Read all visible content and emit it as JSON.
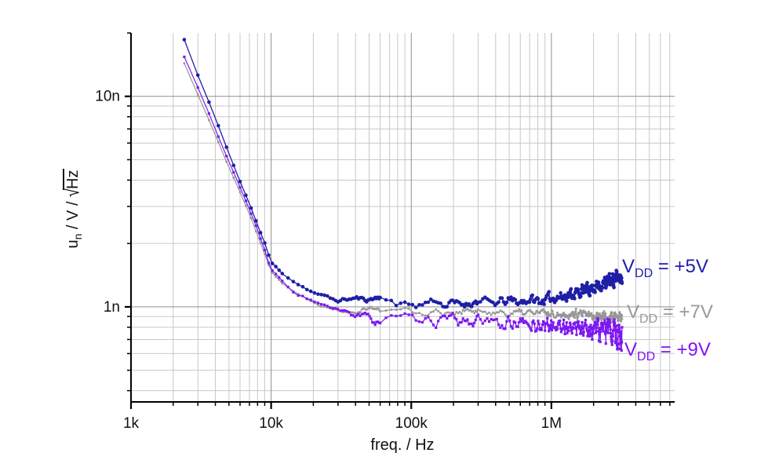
{
  "chart_data": {
    "type": "line",
    "title": "",
    "xlabel": "freq. / Hz",
    "ylabel": "u_n / V / sqrt(Hz)",
    "xscale": "log",
    "yscale": "log",
    "xlim_Hz": [
      1000,
      7580000
    ],
    "ylim_nV_per_rtHz": [
      0.3536,
      20
    ],
    "grid": "full-minor-log-grid",
    "legend_position": "right-of-curve-ends",
    "y_title_parts": {
      "base": "u",
      "sub": "n",
      "mid": " / V / ",
      "radical": "√",
      "arg": "Hz"
    },
    "x_ticks_major": [
      {
        "v": 1000,
        "label": "1k"
      },
      {
        "v": 10000,
        "label": "10k"
      },
      {
        "v": 100000,
        "label": "100k"
      },
      {
        "v": 1000000,
        "label": "1M"
      }
    ],
    "x_ticks_minor": [
      2000,
      3000,
      4000,
      5000,
      6000,
      7000,
      8000,
      9000,
      20000,
      30000,
      40000,
      50000,
      60000,
      70000,
      80000,
      90000,
      200000,
      300000,
      400000,
      500000,
      600000,
      700000,
      800000,
      900000,
      2000000,
      3000000,
      4000000,
      5000000,
      6000000,
      7000000
    ],
    "y_ticks_major": [
      {
        "v": 10,
        "label": "10n"
      },
      {
        "v": 1,
        "label": "1n"
      }
    ],
    "y_ticks_minor": [
      20,
      9,
      8,
      7,
      6,
      5,
      4,
      3,
      2,
      0.9,
      0.8,
      0.7,
      0.6,
      0.5,
      0.4
    ],
    "style": {
      "grid_minor_color": "#c8c8c8",
      "grid_major_color": "#8f8f8f",
      "spine_color": "#000000",
      "tick_color": "#000000",
      "label_color": "#111111",
      "background": "#ffffff"
    },
    "sampling_spans_Hz": [
      [
        2400,
        12000,
        600
      ],
      [
        13200,
        60000,
        1200
      ],
      [
        66000,
        300000,
        6000
      ],
      [
        312000,
        3200000,
        12000
      ]
    ],
    "series": [
      {
        "name": "VDD = +5V",
        "color": "#1e1ea6",
        "marker": "circle",
        "marker_size": 2.3,
        "line_width": 1.3,
        "z": 3,
        "seed": 11,
        "bias": 0.25,
        "trend_nV_per_rtHz": [
          [
            2370,
            19.0
          ],
          [
            3000,
            12.6
          ],
          [
            4000,
            7.9
          ],
          [
            5000,
            5.3
          ],
          [
            6000,
            3.95
          ],
          [
            7000,
            3.1
          ],
          [
            8000,
            2.45
          ],
          [
            9000,
            2.0
          ],
          [
            10000,
            1.62
          ],
          [
            12000,
            1.45
          ],
          [
            15000,
            1.3
          ],
          [
            20000,
            1.17
          ],
          [
            25000,
            1.11
          ],
          [
            30000,
            1.07
          ],
          [
            40000,
            1.1
          ],
          [
            50000,
            1.08
          ],
          [
            60000,
            1.12
          ],
          [
            70000,
            1.06
          ],
          [
            78000,
            1.0
          ],
          [
            85000,
            1.04
          ],
          [
            92000,
            1.07
          ],
          [
            100000,
            1.04
          ],
          [
            110000,
            0.99
          ],
          [
            130000,
            1.06
          ],
          [
            150000,
            1.08
          ],
          [
            170000,
            1.01
          ],
          [
            200000,
            1.04
          ],
          [
            250000,
            1.03
          ],
          [
            300000,
            1.06
          ],
          [
            400000,
            1.04
          ],
          [
            500000,
            1.07
          ],
          [
            600000,
            1.05
          ],
          [
            700000,
            1.08
          ],
          [
            850000,
            1.06
          ],
          [
            1000000,
            1.1
          ],
          [
            1200000,
            1.12
          ],
          [
            1500000,
            1.16
          ],
          [
            1800000,
            1.2
          ],
          [
            2200000,
            1.26
          ],
          [
            2600000,
            1.32
          ],
          [
            3000000,
            1.38
          ],
          [
            3200000,
            1.42
          ]
        ],
        "noise_sigma_log10": [
          [
            2400,
            0.0015
          ],
          [
            20000,
            0.004
          ],
          [
            60000,
            0.008
          ],
          [
            150000,
            0.011
          ],
          [
            400000,
            0.013
          ],
          [
            1000000,
            0.016
          ],
          [
            2000000,
            0.02
          ],
          [
            3200000,
            0.024
          ]
        ]
      },
      {
        "name": "VDD = +7V",
        "color": "#969696",
        "marker": "square",
        "marker_size": 2.6,
        "line_width": 1.2,
        "z": 1,
        "seed": 22,
        "bias": 0,
        "trend_nV_per_rtHz": [
          [
            2350,
            14.8
          ],
          [
            3000,
            10.2
          ],
          [
            4000,
            6.6
          ],
          [
            5000,
            4.6
          ],
          [
            6000,
            3.5
          ],
          [
            7000,
            2.75
          ],
          [
            8000,
            2.2
          ],
          [
            9000,
            1.8
          ],
          [
            10000,
            1.48
          ],
          [
            12000,
            1.3
          ],
          [
            15000,
            1.16
          ],
          [
            20000,
            1.05
          ],
          [
            25000,
            1.0
          ],
          [
            30000,
            0.97
          ],
          [
            40000,
            0.95
          ],
          [
            50000,
            1.0
          ],
          [
            60000,
            0.96
          ],
          [
            70000,
            0.99
          ],
          [
            80000,
            0.96
          ],
          [
            90000,
            0.98
          ],
          [
            100000,
            0.95
          ],
          [
            120000,
            0.93
          ],
          [
            150000,
            0.95
          ],
          [
            200000,
            0.94
          ],
          [
            250000,
            0.96
          ],
          [
            300000,
            0.94
          ],
          [
            400000,
            0.95
          ],
          [
            500000,
            0.93
          ],
          [
            700000,
            0.94
          ],
          [
            1000000,
            0.93
          ],
          [
            1500000,
            0.92
          ],
          [
            2000000,
            0.91
          ],
          [
            2500000,
            0.9
          ],
          [
            3200000,
            0.89
          ]
        ],
        "noise_sigma_log10": [
          [
            2400,
            0.0015
          ],
          [
            20000,
            0.004
          ],
          [
            60000,
            0.009
          ],
          [
            150000,
            0.011
          ],
          [
            400000,
            0.012
          ],
          [
            1000000,
            0.014
          ],
          [
            2000000,
            0.016
          ],
          [
            3200000,
            0.018
          ]
        ]
      },
      {
        "name": "VDD = +9V",
        "color": "#7d18f0",
        "marker": "square",
        "marker_size": 3.2,
        "line_width": 1.2,
        "z": 2,
        "seed": 33,
        "bias": -0.5,
        "trend_nV_per_rtHz": [
          [
            2360,
            15.8
          ],
          [
            3000,
            11.0
          ],
          [
            4000,
            7.0
          ],
          [
            5000,
            4.9
          ],
          [
            6000,
            3.7
          ],
          [
            7000,
            2.9
          ],
          [
            8000,
            2.3
          ],
          [
            9000,
            1.85
          ],
          [
            10000,
            1.5
          ],
          [
            12000,
            1.32
          ],
          [
            15000,
            1.17
          ],
          [
            20000,
            1.06
          ],
          [
            25000,
            1.0
          ],
          [
            30000,
            0.96
          ],
          [
            40000,
            0.92
          ],
          [
            50000,
            0.9
          ],
          [
            55000,
            0.86
          ],
          [
            60000,
            0.85
          ],
          [
            70000,
            0.9
          ],
          [
            80000,
            0.87
          ],
          [
            90000,
            0.9
          ],
          [
            100000,
            0.88
          ],
          [
            120000,
            0.84
          ],
          [
            150000,
            0.87
          ],
          [
            200000,
            0.88
          ],
          [
            250000,
            0.85
          ],
          [
            300000,
            0.86
          ],
          [
            400000,
            0.84
          ],
          [
            500000,
            0.85
          ],
          [
            700000,
            0.83
          ],
          [
            1000000,
            0.82
          ],
          [
            1300000,
            0.81
          ],
          [
            1700000,
            0.8
          ],
          [
            2200000,
            0.79
          ],
          [
            2700000,
            0.77
          ],
          [
            3200000,
            0.75
          ]
        ],
        "noise_sigma_log10": [
          [
            2400,
            0.0015
          ],
          [
            20000,
            0.005
          ],
          [
            60000,
            0.01
          ],
          [
            150000,
            0.014
          ],
          [
            400000,
            0.018
          ],
          [
            1000000,
            0.024
          ],
          [
            2000000,
            0.032
          ],
          [
            3200000,
            0.042
          ]
        ]
      }
    ]
  },
  "legend": {
    "items": [
      {
        "main": "V",
        "sub": "DD",
        "rest": " = +5V",
        "color": "#1e1ea6"
      },
      {
        "main": "V",
        "sub": "DD",
        "rest": " = +7V",
        "color": "#9a9a9a"
      },
      {
        "main": "V",
        "sub": "DD",
        "rest": " = +9V",
        "color": "#8412f5"
      }
    ]
  }
}
